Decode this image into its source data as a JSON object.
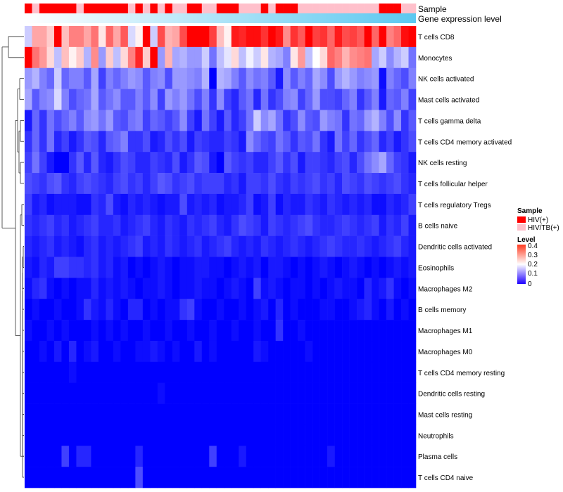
{
  "chart_data": {
    "type": "heatmap",
    "title": "",
    "annotation_labels": {
      "sample": "Sample",
      "expression": "Gene expression level"
    },
    "sample_groups": [
      "HIV(+)",
      "HIV/TB(+)"
    ],
    "sample_annotation": [
      0,
      1,
      0,
      0,
      0,
      0,
      0,
      1,
      0,
      0,
      0,
      0,
      0,
      0,
      1,
      0,
      1,
      0,
      1,
      0,
      1,
      1,
      0,
      0,
      1,
      1,
      0,
      0,
      0,
      1,
      1,
      1,
      0,
      1,
      0,
      0,
      0,
      1,
      1,
      1,
      1,
      1,
      1,
      1,
      1,
      1,
      1,
      1,
      0,
      0,
      0,
      1,
      1
    ],
    "rows": [
      "T cells CD8",
      "Monocytes",
      "NK cells activated",
      "Mast cells activated",
      "T cells gamma delta",
      "T cells CD4 memory activated",
      "NK cells resting",
      "T cells follicular helper",
      "T cells regulatory  Tregs",
      "B cells naive",
      "Dendritic cells activated",
      "Eosinophils",
      "Macrophages M2",
      "B cells memory",
      "Macrophages M1",
      "Macrophages M0",
      "T cells CD4 memory resting",
      "Dendritic cells resting",
      "Mast cells resting",
      "Neutrophils",
      "Plasma cells",
      "T cells CD4 naive"
    ],
    "values": [
      [
        0.16,
        0.27,
        0.27,
        0.24,
        0.4,
        0.25,
        0.3,
        0.3,
        0.27,
        0.31,
        0.22,
        0.32,
        0.27,
        0.33,
        0.17,
        0.21,
        0.41,
        0.16,
        0.34,
        0.26,
        0.27,
        0.34,
        0.44,
        0.45,
        0.44,
        0.35,
        0.25,
        0.21,
        0.38,
        0.37,
        0.39,
        0.39,
        0.36,
        0.42,
        0.38,
        0.29,
        0.36,
        0.33,
        0.41,
        0.35,
        0.36,
        0.32,
        0.38,
        0.34,
        0.35,
        0.33,
        0.4,
        0.32,
        0.4,
        0.3,
        0.32,
        0.39,
        0.41
      ],
      [
        0.4,
        0.31,
        0.28,
        0.23,
        0.15,
        0.25,
        0.21,
        0.24,
        0.14,
        0.29,
        0.12,
        0.24,
        0.15,
        0.23,
        0.3,
        0.37,
        0.24,
        0.42,
        0.12,
        0.26,
        0.13,
        0.14,
        0.12,
        0.12,
        0.16,
        0.09,
        0.15,
        0.18,
        0.23,
        0.15,
        0.19,
        0.16,
        0.22,
        0.14,
        0.13,
        0.1,
        0.22,
        0.28,
        0.15,
        0.2,
        0.23,
        0.32,
        0.3,
        0.26,
        0.29,
        0.3,
        0.31,
        0.13,
        0.16,
        0.11,
        0.14,
        0.16,
        0.09
      ],
      [
        0.12,
        0.14,
        0.1,
        0.08,
        0.16,
        0.08,
        0.1,
        0.1,
        0.07,
        0.13,
        0.05,
        0.1,
        0.08,
        0.1,
        0.12,
        0.11,
        0.07,
        0.1,
        0.11,
        0.06,
        0.12,
        0.12,
        0.11,
        0.1,
        0.14,
        0.0,
        0.14,
        0.13,
        0.1,
        0.07,
        0.11,
        0.09,
        0.1,
        0.07,
        0.02,
        0.11,
        0.07,
        0.1,
        0.08,
        0.13,
        0.11,
        0.06,
        0.12,
        0.14,
        0.12,
        0.1,
        0.11,
        0.12,
        0.01,
        0.1,
        0.08,
        0.06,
        0.1
      ],
      [
        0.13,
        0.07,
        0.1,
        0.11,
        0.17,
        0.1,
        0.06,
        0.08,
        0.09,
        0.13,
        0.07,
        0.09,
        0.11,
        0.07,
        0.07,
        0.1,
        0.07,
        0.11,
        0.05,
        0.12,
        0.1,
        0.12,
        0.09,
        0.06,
        0.1,
        0.04,
        0.11,
        0.05,
        0.03,
        0.07,
        0.09,
        0.03,
        0.09,
        0.04,
        0.06,
        0.1,
        0.11,
        0.05,
        0.08,
        0.12,
        0.06,
        0.06,
        0.05,
        0.08,
        0.1,
        0.04,
        0.07,
        0.1,
        0.02,
        0.08,
        0.07,
        0.1,
        0.05
      ],
      [
        0.02,
        0.08,
        0.04,
        0.09,
        0.06,
        0.08,
        0.1,
        0.07,
        0.11,
        0.12,
        0.09,
        0.12,
        0.07,
        0.06,
        0.09,
        0.1,
        0.05,
        0.08,
        0.07,
        0.05,
        0.07,
        0.11,
        0.05,
        0.02,
        0.09,
        0.05,
        0.02,
        0.07,
        0.03,
        0.05,
        0.09,
        0.16,
        0.11,
        0.13,
        0.09,
        0.04,
        0.06,
        0.11,
        0.07,
        0.06,
        0.12,
        0.1,
        0.09,
        0.04,
        0.09,
        0.08,
        0.12,
        0.14,
        0.1,
        0.06,
        0.11,
        0.04,
        0.07
      ],
      [
        0.04,
        0.08,
        0.04,
        0.09,
        0.03,
        0.05,
        0.02,
        0.04,
        0.07,
        0.06,
        0.03,
        0.07,
        0.08,
        0.1,
        0.04,
        0.04,
        0.06,
        0.02,
        0.03,
        0.06,
        0.04,
        0.06,
        0.02,
        0.05,
        0.04,
        0.03,
        0.03,
        0.05,
        0.04,
        0.02,
        0.11,
        0.08,
        0.06,
        0.05,
        0.09,
        0.07,
        0.04,
        0.07,
        0.06,
        0.09,
        0.04,
        0.02,
        0.09,
        0.05,
        0.08,
        0.04,
        0.06,
        0.08,
        0.03,
        0.05,
        0.02,
        0.04,
        0.06
      ],
      [
        0.05,
        0.09,
        0.05,
        0.02,
        0.0,
        0.0,
        0.04,
        0.07,
        0.03,
        0.07,
        0.03,
        0.02,
        0.04,
        0.06,
        0.05,
        0.03,
        0.03,
        0.05,
        0.04,
        0.03,
        0.06,
        0.02,
        0.04,
        0.07,
        0.06,
        0.02,
        0.0,
        0.07,
        0.05,
        0.04,
        0.05,
        0.03,
        0.03,
        0.05,
        0.07,
        0.04,
        0.06,
        0.02,
        0.05,
        0.05,
        0.04,
        0.03,
        0.05,
        0.06,
        0.03,
        0.06,
        0.09,
        0.11,
        0.13,
        0.08,
        0.05,
        0.04,
        0.02
      ],
      [
        0.06,
        0.05,
        0.04,
        0.06,
        0.07,
        0.04,
        0.03,
        0.05,
        0.06,
        0.05,
        0.04,
        0.03,
        0.05,
        0.06,
        0.04,
        0.05,
        0.03,
        0.05,
        0.07,
        0.06,
        0.04,
        0.05,
        0.06,
        0.04,
        0.05,
        0.05,
        0.05,
        0.03,
        0.04,
        0.02,
        0.05,
        0.05,
        0.04,
        0.06,
        0.04,
        0.03,
        0.05,
        0.04,
        0.05,
        0.06,
        0.04,
        0.05,
        0.03,
        0.06,
        0.05,
        0.04,
        0.06,
        0.05,
        0.04,
        0.05,
        0.06,
        0.04,
        0.03
      ],
      [
        0.05,
        0.02,
        0.03,
        0.01,
        0.02,
        0.02,
        0.02,
        0.01,
        0.01,
        0.04,
        0.03,
        0.06,
        0.02,
        0.01,
        0.03,
        0.02,
        0.03,
        0.02,
        0.01,
        0.02,
        0.02,
        0.06,
        0.02,
        0.03,
        0.02,
        0.03,
        0.01,
        0.02,
        0.02,
        0.03,
        0.05,
        0.01,
        0.02,
        0.05,
        0.01,
        0.03,
        0.02,
        0.02,
        0.04,
        0.03,
        0.02,
        0.04,
        0.03,
        0.02,
        0.03,
        0.02,
        0.03,
        0.01,
        0.01,
        0.03,
        0.02,
        0.03,
        0.05
      ],
      [
        0.04,
        0.03,
        0.04,
        0.05,
        0.03,
        0.04,
        0.02,
        0.03,
        0.04,
        0.05,
        0.03,
        0.03,
        0.04,
        0.02,
        0.03,
        0.04,
        0.05,
        0.03,
        0.02,
        0.04,
        0.03,
        0.02,
        0.04,
        0.03,
        0.04,
        0.05,
        0.03,
        0.02,
        0.04,
        0.06,
        0.05,
        0.04,
        0.02,
        0.05,
        0.04,
        0.03,
        0.04,
        0.05,
        0.06,
        0.04,
        0.03,
        0.03,
        0.04,
        0.05,
        0.04,
        0.03,
        0.04,
        0.05,
        0.02,
        0.04,
        0.03,
        0.05,
        0.02
      ],
      [
        0.03,
        0.02,
        0.03,
        0.04,
        0.02,
        0.03,
        0.02,
        0.01,
        0.03,
        0.04,
        0.02,
        0.03,
        0.02,
        0.03,
        0.04,
        0.05,
        0.02,
        0.03,
        0.02,
        0.04,
        0.03,
        0.02,
        0.03,
        0.04,
        0.02,
        0.03,
        0.04,
        0.05,
        0.03,
        0.02,
        0.03,
        0.02,
        0.04,
        0.03,
        0.02,
        0.03,
        0.04,
        0.03,
        0.02,
        0.03,
        0.04,
        0.05,
        0.04,
        0.03,
        0.03,
        0.04,
        0.03,
        0.02,
        0.03,
        0.04,
        0.05,
        0.03,
        0.02
      ],
      [
        0.02,
        0.01,
        0.03,
        0.02,
        0.05,
        0.05,
        0.04,
        0.04,
        0.03,
        0.04,
        0.02,
        0.03,
        0.01,
        0.02,
        0.0,
        0.01,
        0.0,
        0.01,
        0.02,
        0.01,
        0.0,
        0.01,
        0.01,
        0.02,
        0.02,
        0.01,
        0.01,
        0.0,
        0.01,
        0.02,
        0.01,
        0.02,
        0.0,
        0.02,
        0.02,
        0.01,
        0.0,
        0.01,
        0.0,
        0.01,
        0.02,
        0.01,
        0.0,
        0.01,
        0.02,
        0.01,
        0.0,
        0.01,
        0.0,
        0.01,
        0.02,
        0.01,
        0.02
      ],
      [
        0.01,
        0.03,
        0.04,
        0.01,
        0.0,
        0.01,
        0.0,
        0.01,
        0.01,
        0.03,
        0.01,
        0.02,
        0.01,
        0.02,
        0.01,
        0.0,
        0.01,
        0.01,
        0.02,
        0.01,
        0.0,
        0.01,
        0.01,
        0.02,
        0.01,
        0.01,
        0.0,
        0.01,
        0.02,
        0.01,
        0.0,
        0.05,
        0.01,
        0.02,
        0.01,
        0.0,
        0.01,
        0.01,
        0.0,
        0.01,
        0.0,
        0.01,
        0.02,
        0.01,
        0.01,
        0.0,
        0.03,
        0.01,
        0.02,
        0.04,
        0.01,
        0.0,
        0.01
      ],
      [
        0.0,
        0.01,
        0.0,
        0.0,
        0.01,
        0.0,
        0.0,
        0.01,
        0.04,
        0.02,
        0.01,
        0.03,
        0.01,
        0.0,
        0.03,
        0.03,
        0.0,
        0.01,
        0.0,
        0.01,
        0.01,
        0.04,
        0.05,
        0.01,
        0.0,
        0.0,
        0.01,
        0.0,
        0.0,
        0.01,
        0.0,
        0.01,
        0.02,
        0.0,
        0.03,
        0.0,
        0.01,
        0.0,
        0.0,
        0.0,
        0.01,
        0.01,
        0.0,
        0.0,
        0.01,
        0.02,
        0.03,
        0.01,
        0.0,
        0.02,
        0.0,
        0.01,
        0.0
      ],
      [
        0.01,
        0.0,
        0.0,
        0.01,
        0.0,
        0.01,
        0.0,
        0.0,
        0.0,
        0.01,
        0.0,
        0.01,
        0.0,
        0.01,
        0.0,
        0.0,
        0.01,
        0.0,
        0.0,
        0.01,
        0.0,
        0.0,
        0.01,
        0.0,
        0.0,
        0.01,
        0.0,
        0.0,
        0.01,
        0.0,
        0.0,
        0.01,
        0.0,
        0.0,
        0.04,
        0.0,
        0.0,
        0.01,
        0.0,
        0.0,
        0.0,
        0.0,
        0.0,
        0.0,
        0.0,
        0.0,
        0.0,
        0.0,
        0.0,
        0.0,
        0.0,
        0.0,
        0.0
      ],
      [
        0.0,
        0.0,
        0.01,
        0.0,
        0.02,
        0.0,
        0.03,
        0.0,
        0.01,
        0.02,
        0.0,
        0.0,
        0.01,
        0.0,
        0.0,
        0.01,
        0.01,
        0.02,
        0.01,
        0.0,
        0.01,
        0.0,
        0.0,
        0.02,
        0.0,
        0.01,
        0.0,
        0.0,
        0.0,
        0.0,
        0.0,
        0.02,
        0.01,
        0.0,
        0.0,
        0.0,
        0.0,
        0.0,
        0.01,
        0.0,
        0.0,
        0.0,
        0.0,
        0.0,
        0.0,
        0.0,
        0.0,
        0.0,
        0.0,
        0.0,
        0.0,
        0.0,
        0.0
      ],
      [
        0.0,
        0.0,
        0.0,
        0.0,
        0.0,
        0.0,
        0.01,
        0.0,
        0.0,
        0.0,
        0.0,
        0.0,
        0.0,
        0.0,
        0.0,
        0.0,
        0.0,
        0.0,
        0.0,
        0.0,
        0.0,
        0.0,
        0.0,
        0.0,
        0.0,
        0.0,
        0.0,
        0.0,
        0.0,
        0.0,
        0.0,
        0.0,
        0.0,
        0.0,
        0.0,
        0.0,
        0.0,
        0.0,
        0.0,
        0.0,
        0.0,
        0.0,
        0.0,
        0.0,
        0.0,
        0.0,
        0.0,
        0.0,
        0.0,
        0.0,
        0.0,
        0.0,
        0.0
      ],
      [
        0.0,
        0.0,
        0.0,
        0.0,
        0.0,
        0.0,
        0.0,
        0.0,
        0.0,
        0.0,
        0.0,
        0.0,
        0.0,
        0.0,
        0.0,
        0.0,
        0.0,
        0.0,
        0.01,
        0.0,
        0.0,
        0.0,
        0.0,
        0.0,
        0.0,
        0.0,
        0.0,
        0.0,
        0.0,
        0.0,
        0.0,
        0.0,
        0.0,
        0.0,
        0.0,
        0.0,
        0.0,
        0.0,
        0.0,
        0.0,
        0.0,
        0.0,
        0.0,
        0.0,
        0.0,
        0.0,
        0.0,
        0.0,
        0.0,
        0.0,
        0.0,
        0.0,
        0.0
      ],
      [
        0.0,
        0.0,
        0.0,
        0.0,
        0.0,
        0.0,
        0.0,
        0.0,
        0.0,
        0.0,
        0.0,
        0.0,
        0.0,
        0.0,
        0.0,
        0.0,
        0.0,
        0.0,
        0.0,
        0.0,
        0.0,
        0.0,
        0.0,
        0.0,
        0.0,
        0.0,
        0.0,
        0.0,
        0.0,
        0.0,
        0.0,
        0.0,
        0.0,
        0.0,
        0.0,
        0.0,
        0.0,
        0.0,
        0.0,
        0.0,
        0.0,
        0.0,
        0.0,
        0.0,
        0.0,
        0.0,
        0.0,
        0.0,
        0.0,
        0.0,
        0.0,
        0.0,
        0.0
      ],
      [
        0.0,
        0.0,
        0.0,
        0.0,
        0.0,
        0.0,
        0.0,
        0.0,
        0.0,
        0.0,
        0.0,
        0.0,
        0.0,
        0.0,
        0.0,
        0.0,
        0.0,
        0.0,
        0.0,
        0.0,
        0.0,
        0.0,
        0.0,
        0.0,
        0.0,
        0.0,
        0.0,
        0.0,
        0.0,
        0.0,
        0.0,
        0.0,
        0.0,
        0.0,
        0.0,
        0.0,
        0.0,
        0.0,
        0.0,
        0.0,
        0.0,
        0.0,
        0.0,
        0.0,
        0.0,
        0.0,
        0.0,
        0.0,
        0.0,
        0.0,
        0.0,
        0.0,
        0.0
      ],
      [
        0.0,
        0.0,
        0.0,
        0.0,
        0.0,
        0.05,
        0.0,
        0.03,
        0.03,
        0.0,
        0.0,
        0.0,
        0.0,
        0.0,
        0.0,
        0.03,
        0.0,
        0.0,
        0.0,
        0.0,
        0.0,
        0.0,
        0.0,
        0.0,
        0.0,
        0.05,
        0.0,
        0.0,
        0.0,
        0.02,
        0.0,
        0.0,
        0.0,
        0.0,
        0.0,
        0.0,
        0.0,
        0.0,
        0.0,
        0.0,
        0.0,
        0.02,
        0.0,
        0.0,
        0.0,
        0.0,
        0.0,
        0.0,
        0.0,
        0.0,
        0.0,
        0.0,
        0.0
      ],
      [
        0.0,
        0.0,
        0.0,
        0.0,
        0.0,
        0.0,
        0.0,
        0.0,
        0.0,
        0.0,
        0.0,
        0.0,
        0.0,
        0.0,
        0.0,
        0.06,
        0.0,
        0.0,
        0.0,
        0.0,
        0.0,
        0.0,
        0.0,
        0.0,
        0.0,
        0.0,
        0.0,
        0.0,
        0.0,
        0.0,
        0.0,
        0.0,
        0.0,
        0.0,
        0.0,
        0.0,
        0.0,
        0.0,
        0.0,
        0.0,
        0.0,
        0.0,
        0.0,
        0.0,
        0.0,
        0.0,
        0.0,
        0.0,
        0.0,
        0.0,
        0.0,
        0.0,
        0.0
      ]
    ],
    "color_scale": {
      "min": 0,
      "mid": 0.2,
      "max": 0.4,
      "low": "#0000ff",
      "mid_color": "#ffffff",
      "high": "#ff0000"
    },
    "legend": {
      "sample_title": "Sample",
      "sample_items": [
        {
          "label": "HIV(+)",
          "color": "#ff0000"
        },
        {
          "label": "HIV/TB(+)",
          "color": "#ffc0cb"
        }
      ],
      "level_title": "Level",
      "level_ticks": [
        "0.4",
        "0.3",
        "0.2",
        "0.1",
        "0"
      ]
    },
    "row_dendrogram": true
  }
}
